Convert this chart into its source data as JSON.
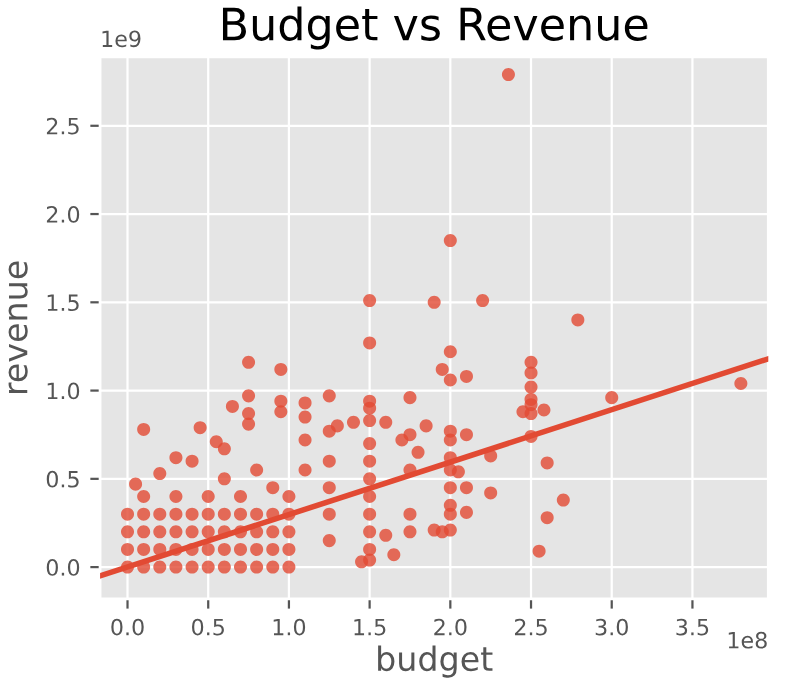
{
  "chart_data": {
    "type": "scatter",
    "title": "Budget vs Revenue",
    "xlabel": "budget",
    "ylabel": "revenue",
    "annotations": [
      "1e9",
      "1e8"
    ],
    "xlim": [
      -0.17,
      3.97
    ],
    "ylim": [
      -0.18,
      2.89
    ],
    "xticks": [
      {
        "value": 0,
        "label": "0.0"
      },
      0.5,
      {
        "value": 1,
        "label": "1.0"
      },
      1.5,
      {
        "value": 2,
        "label": "2.0"
      },
      2.5,
      {
        "value": 3,
        "label": "3.0"
      },
      3.5
    ],
    "yticks": [
      {
        "value": 0,
        "label": "0.0"
      },
      0.5,
      {
        "value": 1,
        "label": "1.0"
      },
      1.5,
      {
        "value": 2,
        "label": "2.0"
      },
      2.5
    ],
    "grid": true,
    "legend": false,
    "series": [
      {
        "color": "#e24a33",
        "marker": "circle",
        "x": [
          2.36,
          2.0,
          1.5,
          1.9,
          2.2,
          2.79,
          1.5,
          2.0,
          3.8,
          3.0,
          2.5,
          2.5,
          2.5,
          2.5,
          2.5,
          2.5,
          2.5,
          2.55,
          2.6,
          2.7,
          2.6,
          2.25,
          2.25,
          2.45,
          2.58,
          2.1,
          2.0,
          1.95,
          2.1,
          2.0,
          2.0,
          2.0,
          2.0,
          2.0,
          2.0,
          2.0,
          2.0,
          1.9,
          1.95,
          2.1,
          2.05,
          2.1,
          1.5,
          1.5,
          1.5,
          1.5,
          1.5,
          1.5,
          1.5,
          1.5,
          1.5,
          1.5,
          1.5,
          1.75,
          1.75,
          1.75,
          1.75,
          1.75,
          1.25,
          1.25,
          1.25,
          1.25,
          1.25,
          1.25,
          1.1,
          1.1,
          1.1,
          1.1,
          0.75,
          0.75,
          0.75,
          0.75,
          0.95,
          0.95,
          0.95,
          0.1,
          0.45,
          0.55,
          0.6,
          0.65,
          0.05,
          0.2,
          0.3,
          0.4,
          0.6,
          0.8,
          0.9,
          1.0,
          1.3,
          1.4,
          1.6,
          1.7,
          1.85,
          1.65,
          1.45,
          1.8,
          1.6,
          0.0,
          0.1,
          0.2,
          0.3,
          0.4,
          0.5,
          0.6,
          0.7,
          0.8,
          0.9,
          1.0,
          0.0,
          0.1,
          0.2,
          0.3,
          0.4,
          0.5,
          0.6,
          0.7,
          0.8,
          0.9,
          1.0,
          0.0,
          0.1,
          0.2,
          0.3,
          0.4,
          0.5,
          0.6,
          0.7,
          0.8,
          0.9,
          1.0,
          0.0,
          0.1,
          0.2,
          0.3,
          0.4,
          0.5,
          0.6,
          0.7,
          0.8,
          0.9,
          1.0,
          0.1,
          0.3,
          0.5,
          0.7
        ],
        "values": [
          2.79,
          1.85,
          1.51,
          1.5,
          1.51,
          1.4,
          1.27,
          1.22,
          1.04,
          0.96,
          1.16,
          1.1,
          1.02,
          0.95,
          0.92,
          0.87,
          0.74,
          0.09,
          0.28,
          0.38,
          0.59,
          0.42,
          0.63,
          0.88,
          0.89,
          1.08,
          1.06,
          1.12,
          0.75,
          0.77,
          0.72,
          0.62,
          0.55,
          0.45,
          0.35,
          0.3,
          0.21,
          0.21,
          0.2,
          0.31,
          0.54,
          0.45,
          0.94,
          0.9,
          0.83,
          0.7,
          0.6,
          0.5,
          0.4,
          0.3,
          0.2,
          0.1,
          0.04,
          0.96,
          0.75,
          0.55,
          0.3,
          0.2,
          0.97,
          0.77,
          0.6,
          0.45,
          0.3,
          0.15,
          0.93,
          0.85,
          0.72,
          0.55,
          1.16,
          0.97,
          0.87,
          0.81,
          1.12,
          0.94,
          0.88,
          0.78,
          0.79,
          0.71,
          0.67,
          0.91,
          0.47,
          0.53,
          0.62,
          0.6,
          0.5,
          0.55,
          0.45,
          0.4,
          0.8,
          0.82,
          0.82,
          0.72,
          0.8,
          0.07,
          0.03,
          0.65,
          0.18,
          0.0,
          0.0,
          0.0,
          0.0,
          0.0,
          0.0,
          0.0,
          0.0,
          0.0,
          0.0,
          0.0,
          0.1,
          0.1,
          0.1,
          0.1,
          0.1,
          0.1,
          0.1,
          0.1,
          0.1,
          0.1,
          0.1,
          0.2,
          0.2,
          0.2,
          0.2,
          0.2,
          0.2,
          0.2,
          0.2,
          0.2,
          0.2,
          0.2,
          0.3,
          0.3,
          0.3,
          0.3,
          0.3,
          0.3,
          0.3,
          0.3,
          0.3,
          0.3,
          0.3,
          0.4,
          0.4,
          0.4,
          0.4
        ]
      },
      {
        "type": "line",
        "marker": "none",
        "color": "#e24a33",
        "x": [
          -0.17,
          3.97
        ],
        "values": [
          -0.05,
          1.18
        ]
      }
    ]
  }
}
